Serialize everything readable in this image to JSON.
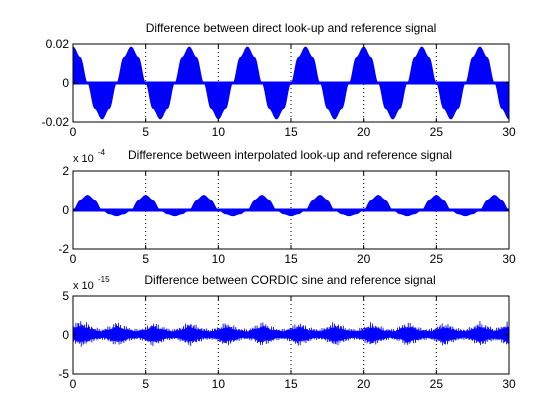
{
  "chart_data": [
    {
      "type": "area",
      "title": "Difference between direct look-up and reference signal",
      "xlabel": "",
      "ylabel": "",
      "xlim": [
        0,
        30
      ],
      "ylim": [
        -0.02,
        0.02
      ],
      "xticks": [
        0,
        5,
        10,
        15,
        20,
        25,
        30
      ],
      "xtick_labels": [
        "0",
        "5",
        "10",
        "15",
        "20",
        "25",
        "30"
      ],
      "yticks": [
        -0.02,
        0,
        0.02
      ],
      "ytick_labels": [
        "-0.02",
        "0",
        "0.02"
      ],
      "exponent_label": "",
      "grid": "x-dotted",
      "color": "#0000ff",
      "series": [
        {
          "x": [
            0,
            0.5,
            1,
            1.5,
            2,
            2.5,
            3,
            3.5,
            4,
            4.5,
            5,
            5.5,
            6,
            6.5,
            7,
            7.5,
            8,
            8.5,
            9,
            9.5,
            10,
            10.5,
            11,
            11.5,
            12,
            12.5,
            13,
            13.5,
            14,
            14.5,
            15,
            15.5,
            16,
            16.5,
            17,
            17.5,
            18,
            18.5,
            19,
            19.5,
            20,
            20.5,
            21,
            21.5,
            22,
            22.5,
            23,
            23.5,
            24,
            24.5,
            25,
            25.5,
            26,
            26.5,
            27,
            27.5,
            28,
            28.5,
            29,
            29.5,
            30
          ],
          "y": [
            0.0185,
            0.0131,
            0,
            -0.0131,
            -0.0185,
            -0.0131,
            0,
            0.0131,
            0.0185,
            0.0131,
            0,
            -0.0131,
            -0.0185,
            -0.0131,
            0,
            0.0131,
            0.0185,
            0.0131,
            0,
            -0.0131,
            -0.0185,
            -0.0131,
            0,
            0.0131,
            0.0185,
            0.0131,
            0,
            -0.0131,
            -0.0185,
            -0.0131,
            0,
            0.0131,
            0.0185,
            0.0131,
            0,
            -0.0131,
            -0.0185,
            -0.0131,
            0,
            0.0131,
            0.0185,
            0.0131,
            0,
            -0.0131,
            -0.0185,
            -0.0131,
            0,
            0.0131,
            0.0185,
            0.0131,
            0,
            -0.0131,
            -0.0185,
            -0.0131,
            0,
            0.0131,
            0.0185,
            0.0131,
            0,
            -0.0131,
            -0.0185
          ]
        }
      ]
    },
    {
      "type": "area",
      "title": "Difference between interpolated look-up and reference signal",
      "xlabel": "",
      "ylabel": "",
      "xlim": [
        0,
        30
      ],
      "ylim": [
        -2,
        2
      ],
      "xticks": [
        0,
        5,
        10,
        15,
        20,
        25,
        30
      ],
      "xtick_labels": [
        "0",
        "5",
        "10",
        "15",
        "20",
        "25",
        "30"
      ],
      "yticks": [
        -2,
        0,
        2
      ],
      "ytick_labels": [
        "-2",
        "0",
        "2"
      ],
      "exponent_label": "x 10",
      "exponent_power": "-4",
      "grid": "x-dotted",
      "color": "#0000ff",
      "series": [
        {
          "x": [
            0,
            0.5,
            1,
            1.5,
            2,
            2.5,
            3,
            3.5,
            4,
            4.5,
            5,
            5.5,
            6,
            6.5,
            7,
            7.5,
            8,
            8.5,
            9,
            9.5,
            10,
            10.5,
            11,
            11.5,
            12,
            12.5,
            13,
            13.5,
            14,
            14.5,
            15,
            15.5,
            16,
            16.5,
            17,
            17.5,
            18,
            18.5,
            19,
            19.5,
            20,
            20.5,
            21,
            21.5,
            22,
            22.5,
            23,
            23.5,
            24,
            24.5,
            25,
            25.5,
            26,
            26.5,
            27,
            27.5,
            28,
            28.5,
            29,
            29.5,
            30
          ],
          "y": [
            0,
            0.5,
            0.75,
            0.5,
            0,
            -0.2,
            -0.3,
            -0.2,
            0,
            0.5,
            0.75,
            0.5,
            0,
            -0.2,
            -0.3,
            -0.2,
            0,
            0.5,
            0.75,
            0.5,
            0,
            -0.2,
            -0.3,
            -0.2,
            0,
            0.5,
            0.75,
            0.5,
            0,
            -0.2,
            -0.3,
            -0.2,
            0,
            0.5,
            0.75,
            0.5,
            0,
            -0.2,
            -0.3,
            -0.2,
            0,
            0.5,
            0.75,
            0.5,
            0,
            -0.2,
            -0.3,
            -0.2,
            0,
            0.5,
            0.75,
            0.5,
            0,
            -0.2,
            -0.3,
            -0.2,
            0,
            0.5,
            0.75,
            0.5,
            0
          ]
        }
      ]
    },
    {
      "type": "line",
      "title": "Difference between CORDIC sine and reference signal",
      "xlabel": "",
      "ylabel": "",
      "xlim": [
        0,
        30
      ],
      "ylim": [
        -5,
        5
      ],
      "xticks": [
        0,
        5,
        10,
        15,
        20,
        25,
        30
      ],
      "xtick_labels": [
        "0",
        "5",
        "10",
        "15",
        "20",
        "25",
        "30"
      ],
      "yticks": [
        -5,
        0,
        5
      ],
      "ytick_labels": [
        "-5",
        "0",
        "5"
      ],
      "exponent_label": "x 10",
      "exponent_power": "-15",
      "grid": "x-dotted",
      "color": "#0000ff",
      "series": [
        {
          "x": [
            0,
            0.5,
            1,
            1.5,
            2,
            2.5,
            3,
            3.5,
            4,
            4.5,
            5,
            5.5,
            6,
            6.5,
            7,
            7.5,
            8,
            8.5,
            9,
            9.5,
            10,
            10.5,
            11,
            11.5,
            12,
            12.5,
            13,
            13.5,
            14,
            14.5,
            15,
            15.5,
            16,
            16.5,
            17,
            17.5,
            18,
            18.5,
            19,
            19.5,
            20,
            20.5,
            21,
            21.5,
            22,
            22.5,
            23,
            23.5,
            24,
            24.5,
            25,
            25.5,
            26,
            26.5,
            27,
            27.5,
            28,
            28.5,
            29,
            29.5,
            30
          ],
          "upper": [
            1.4,
            2.0,
            1.6,
            1.0,
            0.8,
            1.2,
            1.8,
            1.3,
            0.9,
            0.8,
            1.1,
            1.7,
            1.3,
            0.9,
            0.8,
            1.2,
            1.8,
            1.3,
            0.9,
            0.8,
            1.1,
            1.7,
            1.3,
            0.9,
            0.8,
            1.2,
            1.8,
            1.3,
            0.9,
            0.8,
            1.1,
            1.7,
            1.3,
            0.9,
            0.8,
            1.2,
            1.8,
            1.3,
            0.9,
            0.8,
            1.1,
            1.7,
            1.3,
            0.9,
            0.8,
            1.2,
            1.8,
            1.3,
            0.9,
            0.8,
            1.1,
            1.7,
            1.3,
            0.9,
            0.8,
            1.2,
            1.8,
            1.3,
            0.9,
            1.2,
            2.0
          ],
          "lower": [
            -1.0,
            -1.6,
            -1.2,
            -0.8,
            -0.6,
            -0.9,
            -1.5,
            -1.1,
            -0.7,
            -0.6,
            -0.9,
            -1.5,
            -1.1,
            -0.7,
            -0.6,
            -0.9,
            -1.5,
            -1.1,
            -0.7,
            -0.6,
            -0.9,
            -1.5,
            -1.1,
            -0.7,
            -0.6,
            -0.9,
            -1.5,
            -1.1,
            -0.7,
            -0.6,
            -0.9,
            -1.5,
            -1.1,
            -0.7,
            -0.6,
            -0.9,
            -1.5,
            -1.1,
            -0.7,
            -0.6,
            -0.9,
            -1.5,
            -1.1,
            -0.7,
            -0.6,
            -0.9,
            -1.5,
            -1.1,
            -0.7,
            -0.6,
            -0.9,
            -1.5,
            -1.1,
            -0.7,
            -0.6,
            -0.9,
            -1.5,
            -1.1,
            -0.7,
            -1.0,
            -1.6
          ]
        }
      ]
    }
  ]
}
